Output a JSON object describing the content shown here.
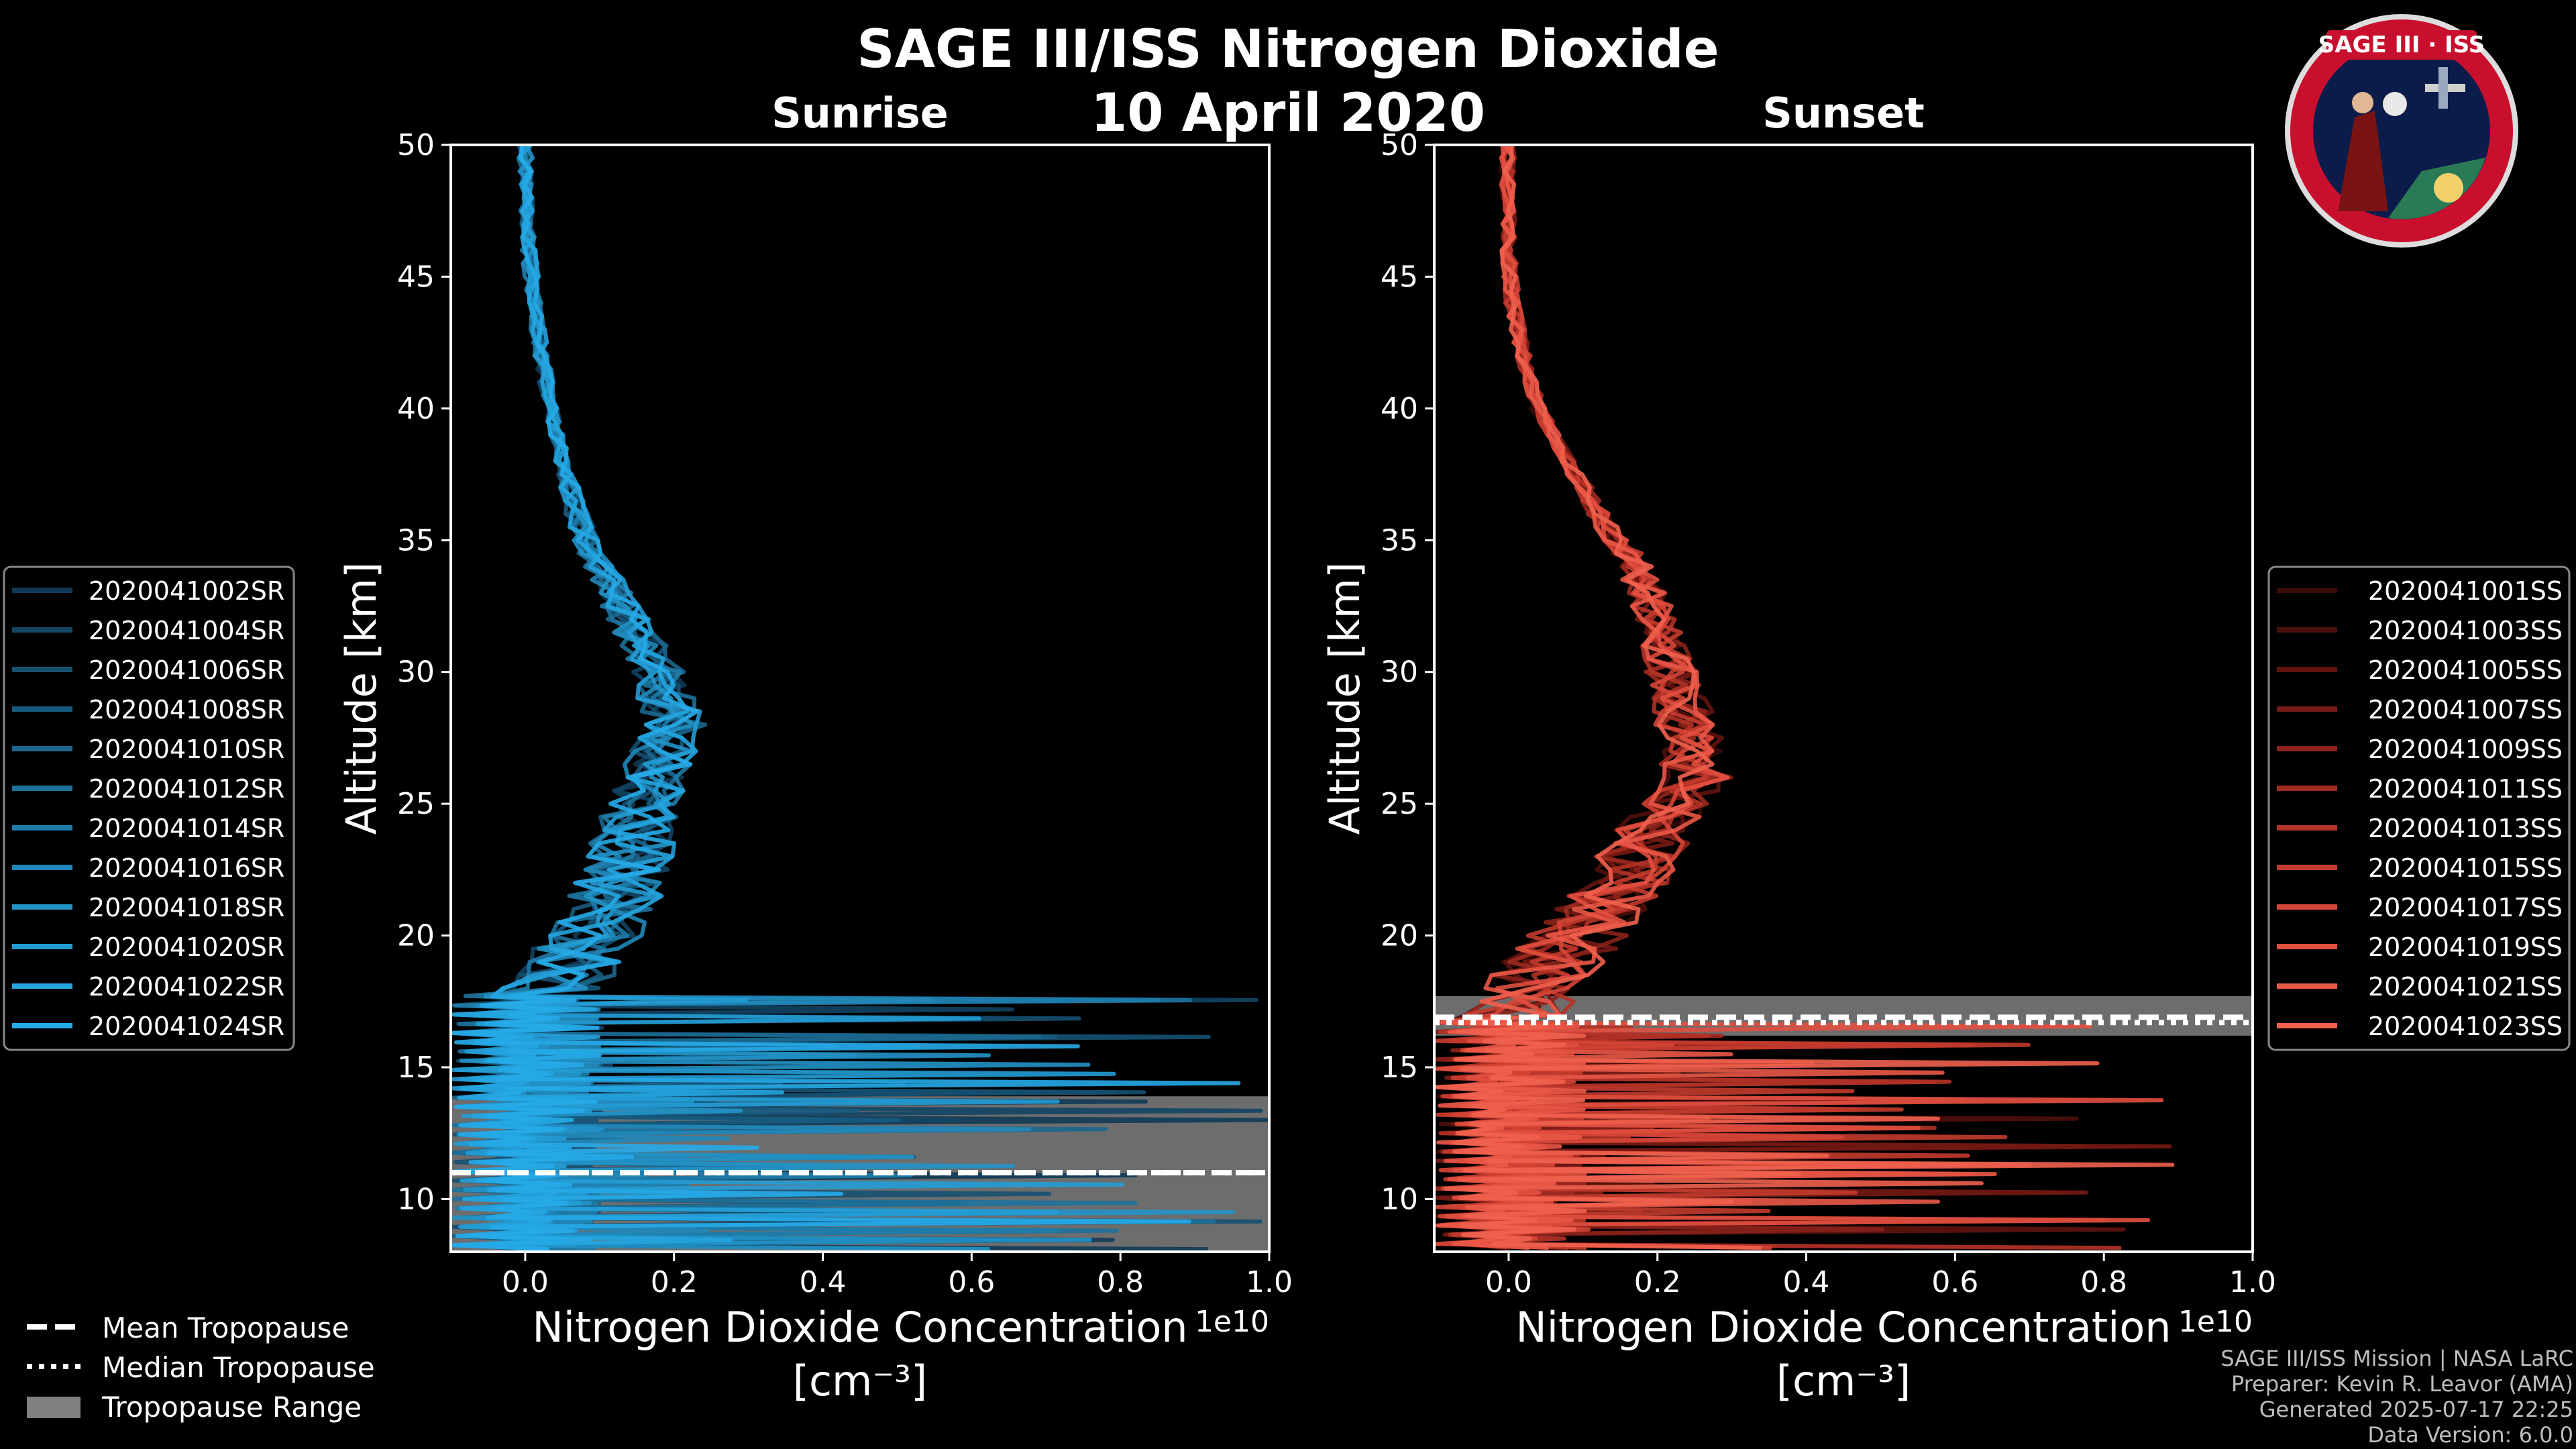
{
  "chart_data": [
    {
      "type": "line",
      "title": "Sunrise",
      "xlabel": "Nitrogen Dioxide Concentration",
      "xlabel_units": "[cm⁻³]",
      "ylabel": "Altitude [km]",
      "xlim": [
        -0.1,
        1.0
      ],
      "ylim": [
        8,
        50
      ],
      "x_ticks": [
        "0.0",
        "0.2",
        "0.4",
        "0.6",
        "0.8",
        "1.0"
      ],
      "y_ticks": [
        "10",
        "15",
        "20",
        "25",
        "30",
        "35",
        "40",
        "45",
        "50"
      ],
      "x_offset_label": "1e10",
      "legend_position": "left",
      "series": [
        {
          "name": "2020041002SR",
          "color": "#0f3a57"
        },
        {
          "name": "2020041004SR",
          "color": "#124564"
        },
        {
          "name": "2020041006SR",
          "color": "#155071"
        },
        {
          "name": "2020041008SR",
          "color": "#185b7f"
        },
        {
          "name": "2020041010SR",
          "color": "#1b668d"
        },
        {
          "name": "2020041012SR",
          "color": "#1d719b"
        },
        {
          "name": "2020041014SR",
          "color": "#1f7caa"
        },
        {
          "name": "2020041016SR",
          "color": "#2187b8"
        },
        {
          "name": "2020041018SR",
          "color": "#2292c7"
        },
        {
          "name": "2020041020SR",
          "color": "#239cd5"
        },
        {
          "name": "2020041022SR",
          "color": "#24a5e0"
        },
        {
          "name": "2020041024SR",
          "color": "#26aae8"
        }
      ],
      "mean_profile": {
        "altitude": [
          50,
          48,
          46,
          44,
          42,
          40,
          38,
          36,
          34,
          32,
          30,
          28,
          26,
          24,
          22,
          20,
          19,
          18
        ],
        "no2": [
          0.0,
          0.002,
          0.005,
          0.012,
          0.022,
          0.035,
          0.05,
          0.07,
          0.1,
          0.14,
          0.18,
          0.2,
          0.17,
          0.15,
          0.13,
          0.09,
          0.06,
          0.04
        ]
      },
      "tropopause": {
        "mean": 11.0,
        "median": 11.0,
        "range": [
          8.0,
          13.9
        ]
      }
    },
    {
      "type": "line",
      "title": "Sunset",
      "xlabel": "Nitrogen Dioxide Concentration",
      "xlabel_units": "[cm⁻³]",
      "ylabel": "Altitude [km]",
      "xlim": [
        -0.1,
        1.0
      ],
      "ylim": [
        8,
        50
      ],
      "x_ticks": [
        "0.0",
        "0.2",
        "0.4",
        "0.6",
        "0.8",
        "1.0"
      ],
      "y_ticks": [
        "10",
        "15",
        "20",
        "25",
        "30",
        "35",
        "40",
        "45",
        "50"
      ],
      "x_offset_label": "1e10",
      "legend_position": "right",
      "series": [
        {
          "name": "2020041001SS",
          "color": "#3a0a07"
        },
        {
          "name": "2020041003SS",
          "color": "#4d0f0b"
        },
        {
          "name": "2020041005SS",
          "color": "#61140f"
        },
        {
          "name": "2020041007SS",
          "color": "#751a14"
        },
        {
          "name": "2020041009SS",
          "color": "#8a221a"
        },
        {
          "name": "2020041011SS",
          "color": "#9e2a20"
        },
        {
          "name": "2020041013SS",
          "color": "#b23227"
        },
        {
          "name": "2020041015SS",
          "color": "#c33b2e"
        },
        {
          "name": "2020041017SS",
          "color": "#d44536"
        },
        {
          "name": "2020041019SS",
          "color": "#e14f3f"
        },
        {
          "name": "2020041021SS",
          "color": "#ea5847"
        },
        {
          "name": "2020041023SS",
          "color": "#f0604e"
        }
      ],
      "mean_profile": {
        "altitude": [
          50,
          48,
          46,
          44,
          42,
          40,
          38,
          36,
          34,
          32,
          30,
          28,
          26,
          24,
          22,
          20,
          18,
          17
        ],
        "no2": [
          0.0,
          -0.002,
          0.0,
          0.005,
          0.02,
          0.04,
          0.08,
          0.12,
          0.17,
          0.2,
          0.22,
          0.24,
          0.25,
          0.2,
          0.15,
          0.09,
          0.03,
          0.01
        ]
      },
      "tropopause": {
        "mean": 16.9,
        "median": 16.7,
        "range": [
          16.2,
          17.7
        ]
      }
    }
  ],
  "header": {
    "title": "SAGE III/ISS Nitrogen Dioxide",
    "date": "10 April 2020",
    "logo_text": "SAGE III · ISS"
  },
  "legend_bottom": {
    "mean": "Mean Tropopause",
    "median": "Median Tropopause",
    "range": "Tropopause Range"
  },
  "footer": {
    "line1": "SAGE III/ISS Mission | NASA LaRC",
    "line2": "Preparer: Kevin R. Leavor (AMA)",
    "line3": "Generated 2025-07-17 22:25",
    "line4": "Data Version: 6.0.0"
  },
  "colors": {
    "background": "#000000",
    "axis": "#ffffff",
    "tropopause_range": "#808080",
    "sunrise_accent": "#26aae8",
    "sunset_accent": "#f0604e"
  }
}
